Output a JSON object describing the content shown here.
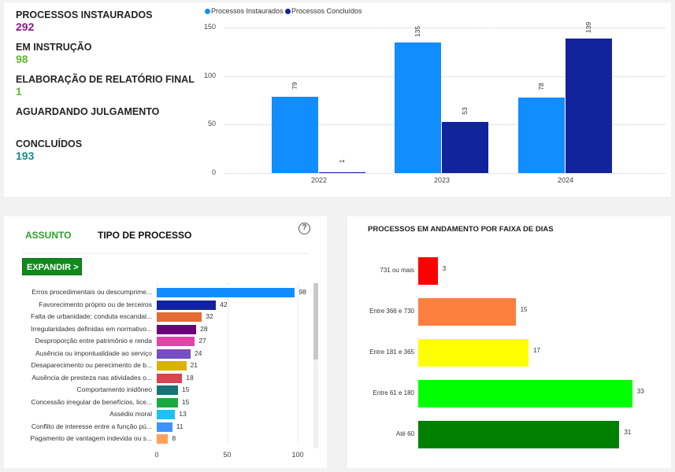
{
  "kpis": [
    {
      "label": "PROCESSOS INSTAURADOS",
      "value": "292",
      "color": "#8b1a8b"
    },
    {
      "label": "EM INSTRUÇÃO",
      "value": "98",
      "color": "#5cb82c"
    },
    {
      "label": "ELABORAÇÃO DE RELATÓRIO FINAL",
      "value": "1",
      "color": "#5cb82c"
    },
    {
      "label": "AGUARDANDO JULGAMENTO",
      "value": "",
      "color": "#5cb82c"
    },
    {
      "label": "CONCLUÍDOS",
      "value": "193",
      "color": "#1a8a8a"
    }
  ],
  "chart_data": [
    {
      "type": "bar",
      "categories": [
        "2022",
        "2023",
        "2024"
      ],
      "series": [
        {
          "name": "Processos Instaurados",
          "values": [
            79,
            135,
            78
          ],
          "color": "#118dff"
        },
        {
          "name": "Processos Concluídos",
          "values": [
            1,
            53,
            139
          ],
          "color": "#12239e"
        }
      ],
      "yticks": [
        "0",
        "50",
        "100",
        "150"
      ],
      "ylim": [
        0,
        150
      ],
      "legend": "top-left",
      "grid": true
    },
    {
      "type": "bar",
      "orientation": "horizontal",
      "categories": [
        "Erros procedimentais ou descumprime...",
        "Favorecimento próprio ou de terceiros",
        "Falta de urbanidade; conduta escandal...",
        "Irregularidades definidas em normativo...",
        "Desproporção entre patrimônio e renda",
        "Ausência ou impontualidade ao serviço",
        "Desaparecimento ou perecimento de b...",
        "Ausência de presteza nas atividades o...",
        "Comportamento inidôneo",
        "Concessão irregular de benefícios, lice...",
        "Assédio moral",
        "Conflito de interesse entre a função pú...",
        "Pagamento de vantagem indevida ou s..."
      ],
      "values": [
        98,
        42,
        32,
        28,
        27,
        24,
        21,
        18,
        15,
        15,
        13,
        11,
        8
      ],
      "colors": [
        "#118dff",
        "#12239e",
        "#e66c37",
        "#6b007b",
        "#e044a7",
        "#744ec2",
        "#d9b300",
        "#d64550",
        "#197278",
        "#1aab40",
        "#15c6f4",
        "#4092ff",
        "#ffa058"
      ],
      "xticks": [
        "0",
        "50",
        "100"
      ],
      "xlim": [
        0,
        100
      ],
      "grid": true
    },
    {
      "type": "bar",
      "orientation": "horizontal",
      "title": "PROCESSOS EM ANDAMENTO POR FAIXA DE DIAS",
      "categories": [
        "731 ou mais",
        "Entre 366 e 730",
        "Entre 181 e 365",
        "Entre 61 e 180",
        "Até 60"
      ],
      "values": [
        3,
        15,
        17,
        33,
        31
      ],
      "colors": [
        "#ff0000",
        "#ff7f3f",
        "#ffff00",
        "#00ff00",
        "#008000"
      ]
    }
  ],
  "tabs": {
    "assunto": "ASSUNTO",
    "tipo": "TIPO DE PROCESSO"
  },
  "help_icon": "question-circle-icon",
  "expand_button": "EXPANDIR >"
}
